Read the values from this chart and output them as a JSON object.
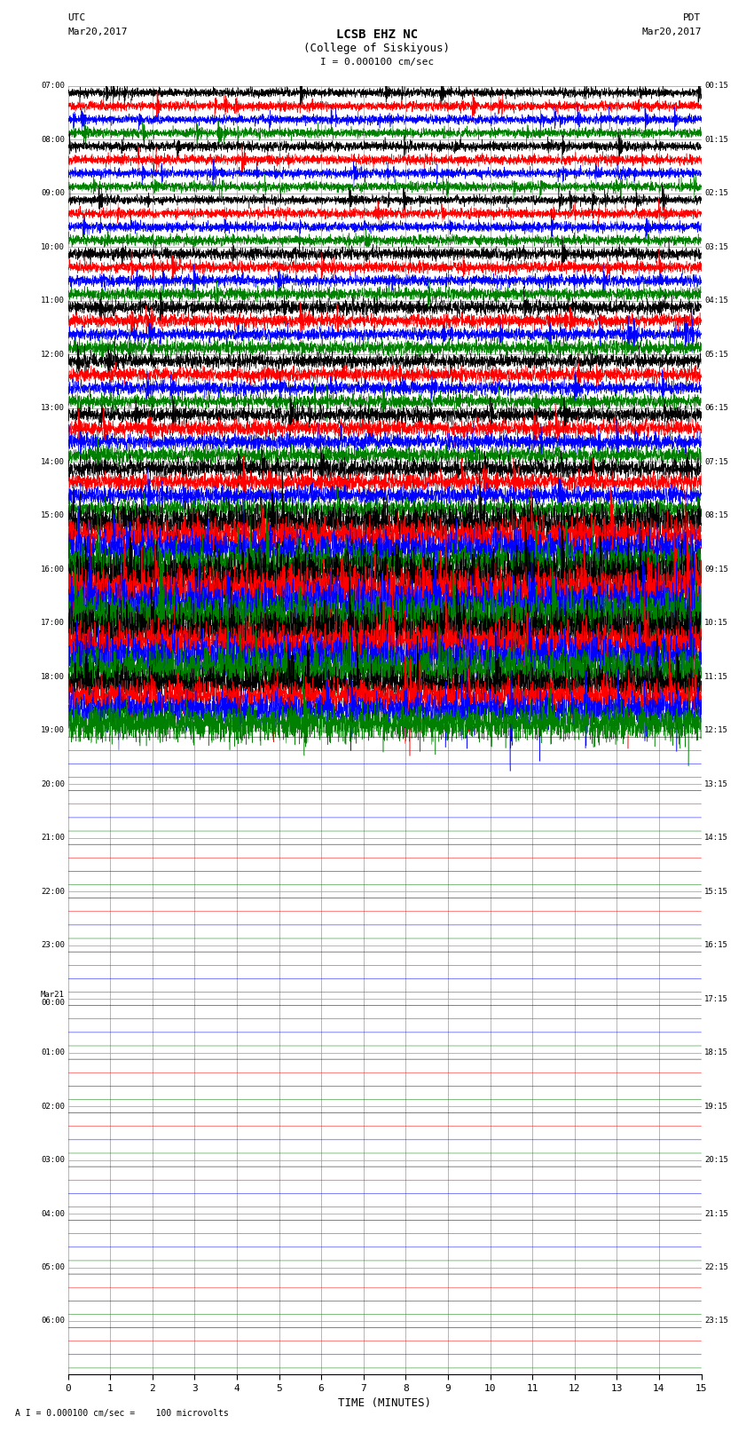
{
  "title_line1": "LCSB EHZ NC",
  "title_line2": "(College of Siskiyous)",
  "scale_label": "I = 0.000100 cm/sec",
  "left_label_top": "UTC",
  "left_label_date": "Mar20,2017",
  "right_label_top": "PDT",
  "right_label_date": "Mar20,2017",
  "bottom_label": "TIME (MINUTES)",
  "footnote": "A I = 0.000100 cm/sec =    100 microvolts",
  "utc_times": [
    "07:00",
    "08:00",
    "09:00",
    "10:00",
    "11:00",
    "12:00",
    "13:00",
    "14:00",
    "15:00",
    "16:00",
    "17:00",
    "18:00",
    "19:00",
    "20:00",
    "21:00",
    "22:00",
    "23:00",
    "Mar21\n00:00",
    "01:00",
    "02:00",
    "03:00",
    "04:00",
    "05:00",
    "06:00"
  ],
  "pdt_times": [
    "00:15",
    "01:15",
    "02:15",
    "03:15",
    "04:15",
    "05:15",
    "06:15",
    "07:15",
    "08:15",
    "09:15",
    "10:15",
    "11:15",
    "12:15",
    "13:15",
    "14:15",
    "15:15",
    "16:15",
    "17:15",
    "18:15",
    "19:15",
    "20:15",
    "21:15",
    "22:15",
    "23:15"
  ],
  "n_rows": 24,
  "traces_per_row": 4,
  "active_rows": 12,
  "colors": [
    "black",
    "red",
    "blue",
    "green"
  ],
  "bg_color": "#ffffff",
  "grid_color": "#999999",
  "fig_width": 8.5,
  "fig_height": 16.13,
  "dpi": 100,
  "x_min": 0,
  "x_max": 15,
  "x_ticks": [
    0,
    1,
    2,
    3,
    4,
    5,
    6,
    7,
    8,
    9,
    10,
    11,
    12,
    13,
    14,
    15
  ],
  "row_amplitudes": [
    0.5,
    0.5,
    0.5,
    0.6,
    0.7,
    0.7,
    0.8,
    0.9,
    1.8,
    2.5,
    2.2,
    1.8
  ]
}
